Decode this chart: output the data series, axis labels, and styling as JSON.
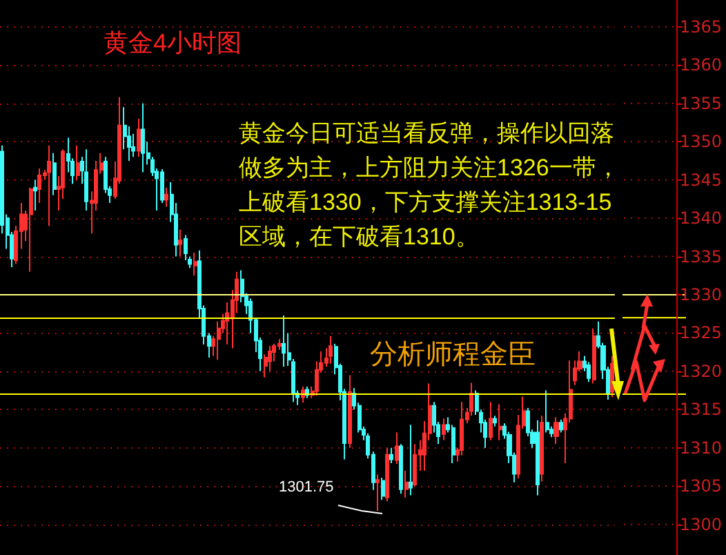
{
  "chart_data": {
    "type": "candlestick",
    "title": "黄金4小时图",
    "annotations": [
      "黄金今日可适当看反弹，操作以回落做多为主，上方阻力关注1326一带，上破看1330，下方支撑关注1313-15区域，在下破看1310。",
      "分析师程金臣",
      "1301.75"
    ],
    "categories": [
      null,
      null,
      null,
      null,
      null,
      null,
      null,
      null,
      null,
      null,
      null,
      null,
      null,
      null,
      null,
      null,
      null,
      null,
      null,
      null,
      null,
      null,
      null,
      null,
      null,
      null,
      null,
      null,
      null,
      null,
      null,
      null,
      null,
      null,
      null,
      null,
      null,
      null,
      null,
      null,
      null,
      null,
      null,
      null,
      null,
      null,
      null,
      null,
      null,
      null,
      null,
      null,
      null,
      null,
      null,
      null,
      null,
      null,
      null,
      null,
      null,
      null,
      null,
      null,
      null,
      null,
      null,
      null,
      null,
      null,
      null,
      null,
      null,
      null,
      null,
      null,
      null,
      null,
      null,
      null,
      null,
      null,
      null,
      null,
      null,
      null,
      null,
      null,
      null,
      null,
      null,
      null,
      null,
      null,
      null,
      null,
      null,
      null,
      null,
      null,
      null,
      null,
      null,
      null,
      null,
      null,
      null,
      null,
      null,
      null,
      null,
      null,
      null,
      null,
      null,
      null,
      null,
      null,
      null,
      null,
      null,
      null,
      null,
      null,
      null,
      null,
      null,
      null,
      null,
      null,
      null
    ],
    "colors": [
      "#40f8f8",
      "#40f8f8",
      "#40f8f8",
      "#ff3030",
      "#ff3030",
      "#ff3030",
      "#ff3030",
      "#40f8f8",
      "#ff3030",
      "#ff3030",
      "#ff3030",
      "#40f8f8",
      "#ff3030",
      "#ff3030",
      "#40f8f8",
      "#40f8f8",
      "#ff3030",
      "#40f8f8",
      "#40f8f8",
      "#ff3030",
      "#ff3030",
      "#ff3030",
      "#40f8f8",
      "#40f8f8",
      "#ff3030",
      "#ff3030",
      "#40f8f8",
      "#40f8f8",
      "#40f8f8",
      "#ff3030",
      "#40f8f8",
      "#40f8f8",
      "#40f8f8",
      "#40f8f8",
      "#40f8f8",
      "#ff3030",
      "#40f8f8",
      "#40f8f8",
      "#ff3030",
      "#40f8f8",
      "#40f8f8",
      "#ff3030",
      "#40f8f8",
      "#40f8f8",
      "#40f8f8",
      "#ff3030",
      "#ff3030",
      "#ff3030",
      "#ff3030",
      "#ff3030",
      "#ff3030",
      "#40f8f8",
      "#40f8f8",
      "#40f8f8",
      "#40f8f8",
      "#40f8f8",
      "#ff3030",
      "#ff3030",
      "#ff3030",
      "#ff3030",
      "#40f8f8",
      "#40f8f8",
      "#40f8f8",
      "#40f8f8",
      "#ff3030",
      "#40f8f8",
      "#ff3030",
      "#ff3030",
      "#ff3030",
      "#ff3030",
      "#ff3030",
      "#40f8f8",
      "#40f8f8",
      "#40f8f8",
      "#ff3030",
      "#40f8f8",
      "#40f8f8",
      "#40f8f8",
      "#40f8f8",
      "#40f8f8",
      "#ff3030",
      "#40f8f8",
      "#ff3030",
      "#40f8f8",
      "#ff3030",
      "#40f8f8",
      "#ff3030",
      "#40f8f8",
      "#ff3030",
      "#ff3030",
      "#ff3030",
      "#ff3030",
      "#40f8f8",
      "#40f8f8",
      "#ff3030",
      "#40f8f8",
      "#40f8f8",
      "#ff3030",
      "#ff3030",
      "#ff3030",
      "#ff3030",
      "#40f8f8",
      "#40f8f8",
      "#40f8f8",
      "#ff3030",
      "#40f8f8",
      "#ff3030",
      "#40f8f8",
      "#40f8f8",
      "#40f8f8",
      "#ff3030",
      "#ff3030",
      "#40f8f8",
      "#40f8f8",
      "#40f8f8",
      "#ff3030",
      "#40f8f8",
      "#40f8f8",
      "#ff3030",
      "#40f8f8",
      "#ff3030",
      "#ff3030",
      "#ff3030",
      "#ff3030",
      "#40f8f8",
      "#40f8f8",
      "#ff3030",
      "#40f8f8",
      "#40f8f8",
      "#40f8f8",
      "#ff3030"
    ],
    "ohlc": [
      [
        1348.7,
        1349.5,
        1338.0,
        1339.1
      ],
      [
        1340.0,
        1340.5,
        1336.0,
        1337.8
      ],
      [
        1337.8,
        1338.2,
        1333.6,
        1334.7
      ],
      [
        1334.5,
        1339.0,
        1334.0,
        1338.3
      ],
      [
        1338.3,
        1342.0,
        1336.0,
        1340.5
      ],
      [
        1338.5,
        1341.0,
        1337.0,
        1340.5
      ],
      [
        1340.5,
        1344.0,
        1333.0,
        1343.8
      ],
      [
        1344.0,
        1345.0,
        1341.0,
        1343.6
      ],
      [
        1343.8,
        1346.5,
        1342.0,
        1345.6
      ],
      [
        1345.6,
        1346.3,
        1345.0,
        1345.9
      ],
      [
        1346.0,
        1349.5,
        1339.0,
        1347.4
      ],
      [
        1347.2,
        1348.5,
        1343.0,
        1343.8
      ],
      [
        1343.8,
        1345.5,
        1341.0,
        1344.1
      ],
      [
        1344.0,
        1349.0,
        1342.5,
        1348.7
      ],
      [
        1348.4,
        1350.5,
        1346.0,
        1347.5
      ],
      [
        1347.4,
        1347.8,
        1344.5,
        1345.6
      ],
      [
        1345.6,
        1349.5,
        1345.0,
        1347.2
      ],
      [
        1347.4,
        1348.0,
        1344.5,
        1346.2
      ],
      [
        1346.0,
        1349.0,
        1341.0,
        1342.2
      ],
      [
        1342.0,
        1343.5,
        1338.0,
        1342.3
      ],
      [
        1342.0,
        1347.5,
        1341.0,
        1346.3
      ],
      [
        1346.3,
        1348.5,
        1345.8,
        1347.2
      ],
      [
        1347.4,
        1348.0,
        1343.3,
        1343.8
      ],
      [
        1343.8,
        1344.2,
        1342.0,
        1343.0
      ],
      [
        1342.9,
        1347.4,
        1342.5,
        1345.2
      ],
      [
        1344.9,
        1355.8,
        1344.5,
        1352.1
      ],
      [
        1352.1,
        1354.5,
        1349.0,
        1350.7
      ],
      [
        1350.7,
        1352.0,
        1347.5,
        1349.3
      ],
      [
        1349.3,
        1351.0,
        1348.0,
        1348.8
      ],
      [
        1348.8,
        1353.0,
        1348.0,
        1351.6
      ],
      [
        1351.6,
        1355.0,
        1346.0,
        1348.5
      ],
      [
        1348.5,
        1350.0,
        1347.0,
        1347.8
      ],
      [
        1347.6,
        1348.0,
        1345.5,
        1346.0
      ],
      [
        1346.1,
        1346.5,
        1341.0,
        1345.2
      ],
      [
        1346.0,
        1346.4,
        1342.0,
        1342.4
      ],
      [
        1342.4,
        1344.0,
        1341.5,
        1343.1
      ],
      [
        1343.1,
        1344.7,
        1339.5,
        1340.5
      ],
      [
        1340.5,
        1342.0,
        1335.0,
        1336.5
      ],
      [
        1336.6,
        1338.5,
        1335.0,
        1337.1
      ],
      [
        1337.3,
        1337.8,
        1334.5,
        1335.4
      ],
      [
        1334.6,
        1335.0,
        1333.5,
        1334.0
      ],
      [
        1333.8,
        1335.5,
        1332.5,
        1334.3
      ],
      [
        1334.4,
        1335.8,
        1327.0,
        1328.2
      ],
      [
        1328.2,
        1328.6,
        1323.5,
        1324.6
      ],
      [
        1324.6,
        1325.0,
        1321.8,
        1323.3
      ],
      [
        1323.3,
        1324.6,
        1322.0,
        1324.2
      ],
      [
        1324.2,
        1326.5,
        1321.5,
        1325.6
      ],
      [
        1325.6,
        1327.5,
        1325.0,
        1326.6
      ],
      [
        1326.6,
        1329.0,
        1323.5,
        1327.6
      ],
      [
        1326.9,
        1330.6,
        1323.0,
        1329.3
      ],
      [
        1329.3,
        1333.0,
        1327.6,
        1332.0
      ],
      [
        1332.0,
        1333.2,
        1329.0,
        1329.8
      ],
      [
        1329.8,
        1330.2,
        1327.5,
        1328.6
      ],
      [
        1329.1,
        1329.5,
        1325.0,
        1326.7
      ],
      [
        1326.7,
        1327.0,
        1322.5,
        1324.0
      ],
      [
        1324.0,
        1324.4,
        1320.0,
        1321.7
      ],
      [
        1320.7,
        1322.2,
        1319.2,
        1321.8
      ],
      [
        1321.3,
        1323.3,
        1320.0,
        1322.6
      ],
      [
        1322.5,
        1323.6,
        1321.3,
        1323.3
      ],
      [
        1323.3,
        1324.2,
        1322.8,
        1323.6
      ],
      [
        1323.6,
        1327.3,
        1320.6,
        1322.4
      ],
      [
        1322.4,
        1325.0,
        1320.7,
        1321.5
      ],
      [
        1321.2,
        1321.6,
        1316.0,
        1317.1
      ],
      [
        1317.1,
        1317.5,
        1315.6,
        1316.6
      ],
      [
        1316.6,
        1318.0,
        1315.9,
        1317.5
      ],
      [
        1317.6,
        1318.0,
        1316.5,
        1316.9
      ],
      [
        1316.9,
        1318.0,
        1316.5,
        1317.4
      ],
      [
        1317.4,
        1321.3,
        1316.8,
        1320.2
      ],
      [
        1320.2,
        1322.6,
        1319.8,
        1321.1
      ],
      [
        1321.1,
        1323.0,
        1320.6,
        1321.7
      ],
      [
        1322.0,
        1324.6,
        1321.0,
        1323.3
      ],
      [
        1323.2,
        1323.6,
        1319.6,
        1320.5
      ],
      [
        1320.7,
        1321.0,
        1316.2,
        1317.3
      ],
      [
        1317.3,
        1317.7,
        1308.5,
        1310.6
      ],
      [
        1310.6,
        1319.5,
        1310.0,
        1317.3
      ],
      [
        1317.1,
        1317.8,
        1315.0,
        1315.5
      ],
      [
        1315.5,
        1315.9,
        1312.0,
        1312.4
      ],
      [
        1312.4,
        1312.8,
        1311.0,
        1311.7
      ],
      [
        1311.5,
        1311.9,
        1308.6,
        1309.1
      ],
      [
        1309.1,
        1309.5,
        1304.5,
        1305.5
      ],
      [
        1305.5,
        1306.5,
        1301.75,
        1305.8
      ],
      [
        1305.7,
        1306.1,
        1303.2,
        1303.7
      ],
      [
        1303.5,
        1310.0,
        1303.0,
        1309.1
      ],
      [
        1309.1,
        1310.0,
        1308.0,
        1308.5
      ],
      [
        1308.4,
        1312.0,
        1307.9,
        1310.2
      ],
      [
        1310.2,
        1310.5,
        1304.0,
        1304.6
      ],
      [
        1304.6,
        1307.0,
        1303.5,
        1305.5
      ],
      [
        1305.5,
        1313.0,
        1303.8,
        1304.8
      ],
      [
        1305.2,
        1310.5,
        1305.0,
        1309.1
      ],
      [
        1309.1,
        1311.0,
        1307.0,
        1309.7
      ],
      [
        1309.1,
        1313.5,
        1307.0,
        1311.9
      ],
      [
        1311.9,
        1318.4,
        1311.0,
        1315.5
      ],
      [
        1315.5,
        1316.0,
        1312.0,
        1313.0
      ],
      [
        1313.0,
        1313.4,
        1310.5,
        1311.5
      ],
      [
        1311.8,
        1313.8,
        1311.0,
        1313.0
      ],
      [
        1313.0,
        1314.0,
        1312.0,
        1312.4
      ],
      [
        1312.6,
        1313.0,
        1308.0,
        1309.1
      ],
      [
        1309.1,
        1310.0,
        1308.2,
        1309.7
      ],
      [
        1309.7,
        1316.0,
        1309.0,
        1313.7
      ],
      [
        1313.7,
        1315.2,
        1313.2,
        1314.6
      ],
      [
        1314.8,
        1318.5,
        1314.2,
        1317.1
      ],
      [
        1317.1,
        1317.5,
        1314.3,
        1314.8
      ],
      [
        1314.6,
        1315.0,
        1312.0,
        1313.3
      ],
      [
        1313.3,
        1313.7,
        1310.0,
        1311.4
      ],
      [
        1311.4,
        1316.0,
        1311.0,
        1313.8
      ],
      [
        1313.8,
        1314.2,
        1312.8,
        1313.3
      ],
      [
        1312.4,
        1315.7,
        1311.0,
        1312.8
      ],
      [
        1312.8,
        1313.2,
        1311.2,
        1311.7
      ],
      [
        1311.7,
        1312.1,
        1308.0,
        1309.0
      ],
      [
        1309.0,
        1309.4,
        1305.5,
        1306.6
      ],
      [
        1306.6,
        1314.3,
        1306.0,
        1312.9
      ],
      [
        1312.9,
        1316.7,
        1312.5,
        1314.8
      ],
      [
        1314.8,
        1315.2,
        1311.5,
        1312.0
      ],
      [
        1312.0,
        1312.4,
        1310.0,
        1310.6
      ],
      [
        1312.0,
        1313.6,
        1303.8,
        1305.2
      ],
      [
        1306.6,
        1314.2,
        1305.6,
        1313.3
      ],
      [
        1313.3,
        1317.5,
        1312.0,
        1312.4
      ],
      [
        1312.4,
        1312.8,
        1311.4,
        1311.9
      ],
      [
        1311.5,
        1314.0,
        1310.5,
        1313.3
      ],
      [
        1313.3,
        1313.7,
        1312.0,
        1312.4
      ],
      [
        1312.4,
        1314.5,
        1308.0,
        1313.8
      ],
      [
        1313.8,
        1321.4,
        1313.3,
        1317.6
      ],
      [
        1318.8,
        1321.4,
        1318.2,
        1320.4
      ],
      [
        1320.3,
        1322.6,
        1320.0,
        1321.3
      ],
      [
        1321.3,
        1322.0,
        1320.0,
        1320.5
      ],
      [
        1320.8,
        1321.2,
        1318.6,
        1319.1
      ],
      [
        1318.9,
        1325.6,
        1318.4,
        1324.6
      ],
      [
        1324.6,
        1326.5,
        1323.0,
        1323.3
      ],
      [
        1323.3,
        1323.7,
        1319.0,
        1320.2
      ],
      [
        1320.2,
        1320.6,
        1316.3,
        1317.1
      ],
      [
        1317.3,
        1322.0,
        1316.6,
        1321.0
      ]
    ],
    "ylim": [
      1296,
      1368.5
    ],
    "yticks": [
      1300,
      1305,
      1310,
      1315,
      1320,
      1325,
      1330,
      1335,
      1340,
      1345,
      1350,
      1355,
      1360,
      1365
    ],
    "grid": "y",
    "ref_lines": [
      {
        "axis": "y",
        "value": 1330,
        "color": "#ffff80"
      },
      {
        "axis": "y",
        "value": 1327,
        "color": "#ffff00"
      },
      {
        "axis": "y",
        "value": 1317,
        "color": "#ffff00"
      }
    ]
  }
}
